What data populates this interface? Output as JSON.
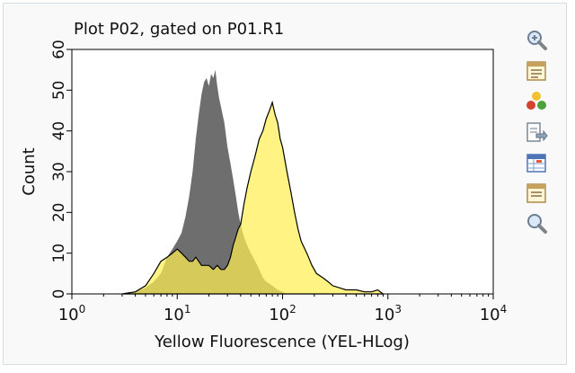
{
  "plot": {
    "title": "Plot P02, gated on P01.R1"
  },
  "toolbar": {
    "tools": [
      {
        "icon": "zoom-in-icon"
      },
      {
        "icon": "properties-icon"
      },
      {
        "icon": "color-overlay-icon"
      },
      {
        "icon": "export-icon"
      },
      {
        "icon": "stats-table-icon"
      },
      {
        "icon": "notes-icon"
      },
      {
        "icon": "search-icon"
      }
    ]
  },
  "chart_data": {
    "type": "area",
    "xlabel": "Yellow Fluorescence (YEL-HLog)",
    "ylabel": "Count",
    "x_scale": "log",
    "xlim": [
      1,
      10000
    ],
    "ylim": [
      0,
      60
    ],
    "x_ticks": [
      {
        "base": "10",
        "exp": "0",
        "value": 1
      },
      {
        "base": "10",
        "exp": "1",
        "value": 10
      },
      {
        "base": "10",
        "exp": "2",
        "value": 100
      },
      {
        "base": "10",
        "exp": "3",
        "value": 1000
      },
      {
        "base": "10",
        "exp": "4",
        "value": 10000
      }
    ],
    "y_ticks": [
      "0",
      "10",
      "20",
      "30",
      "40",
      "50",
      "60"
    ],
    "grid": false,
    "series": [
      {
        "color": "#6e6e6e",
        "style": "filled",
        "points": [
          [
            3,
            0
          ],
          [
            4,
            0.5
          ],
          [
            5,
            1.5
          ],
          [
            6,
            3
          ],
          [
            7,
            5
          ],
          [
            8,
            9
          ],
          [
            9,
            11
          ],
          [
            10,
            13
          ],
          [
            11,
            15
          ],
          [
            12,
            19
          ],
          [
            13,
            24
          ],
          [
            14,
            30
          ],
          [
            15,
            38
          ],
          [
            16,
            44
          ],
          [
            17,
            49
          ],
          [
            18,
            52
          ],
          [
            19,
            53
          ],
          [
            20,
            51
          ],
          [
            21,
            54
          ],
          [
            22,
            53
          ],
          [
            23,
            55
          ],
          [
            24,
            51
          ],
          [
            25,
            48
          ],
          [
            26,
            46
          ],
          [
            28,
            42
          ],
          [
            30,
            36
          ],
          [
            32,
            32
          ],
          [
            34,
            28
          ],
          [
            36,
            24
          ],
          [
            38,
            20
          ],
          [
            40,
            17
          ],
          [
            43,
            14
          ],
          [
            46,
            12
          ],
          [
            50,
            10
          ],
          [
            55,
            8
          ],
          [
            60,
            6
          ],
          [
            65,
            4
          ],
          [
            70,
            3
          ],
          [
            80,
            2
          ],
          [
            90,
            1
          ],
          [
            100,
            0.5
          ],
          [
            110,
            0
          ]
        ]
      },
      {
        "color": "#ffee55",
        "style": "filled-outline",
        "points": [
          [
            3,
            0
          ],
          [
            4,
            0.5
          ],
          [
            5,
            2
          ],
          [
            6,
            5
          ],
          [
            7,
            8
          ],
          [
            8,
            9
          ],
          [
            9,
            10
          ],
          [
            10,
            11
          ],
          [
            11,
            10
          ],
          [
            12,
            9
          ],
          [
            13,
            8
          ],
          [
            14,
            8
          ],
          [
            15,
            9
          ],
          [
            16,
            8
          ],
          [
            17,
            7
          ],
          [
            18,
            7
          ],
          [
            20,
            7
          ],
          [
            22,
            6
          ],
          [
            24,
            7
          ],
          [
            26,
            6
          ],
          [
            28,
            6
          ],
          [
            30,
            7
          ],
          [
            32,
            9
          ],
          [
            34,
            12
          ],
          [
            36,
            14
          ],
          [
            38,
            16
          ],
          [
            40,
            17
          ],
          [
            43,
            22
          ],
          [
            46,
            26
          ],
          [
            50,
            30
          ],
          [
            55,
            34
          ],
          [
            60,
            38
          ],
          [
            65,
            40
          ],
          [
            70,
            43
          ],
          [
            75,
            45
          ],
          [
            80,
            47
          ],
          [
            85,
            44
          ],
          [
            90,
            42
          ],
          [
            95,
            38
          ],
          [
            100,
            36
          ],
          [
            110,
            30
          ],
          [
            120,
            25
          ],
          [
            130,
            20
          ],
          [
            140,
            16
          ],
          [
            150,
            13
          ],
          [
            170,
            10
          ],
          [
            190,
            7
          ],
          [
            210,
            5
          ],
          [
            240,
            4
          ],
          [
            270,
            3
          ],
          [
            300,
            2
          ],
          [
            400,
            1
          ],
          [
            500,
            1
          ],
          [
            600,
            0.5
          ],
          [
            700,
            0.5
          ],
          [
            800,
            1
          ],
          [
            900,
            0
          ]
        ]
      }
    ]
  }
}
